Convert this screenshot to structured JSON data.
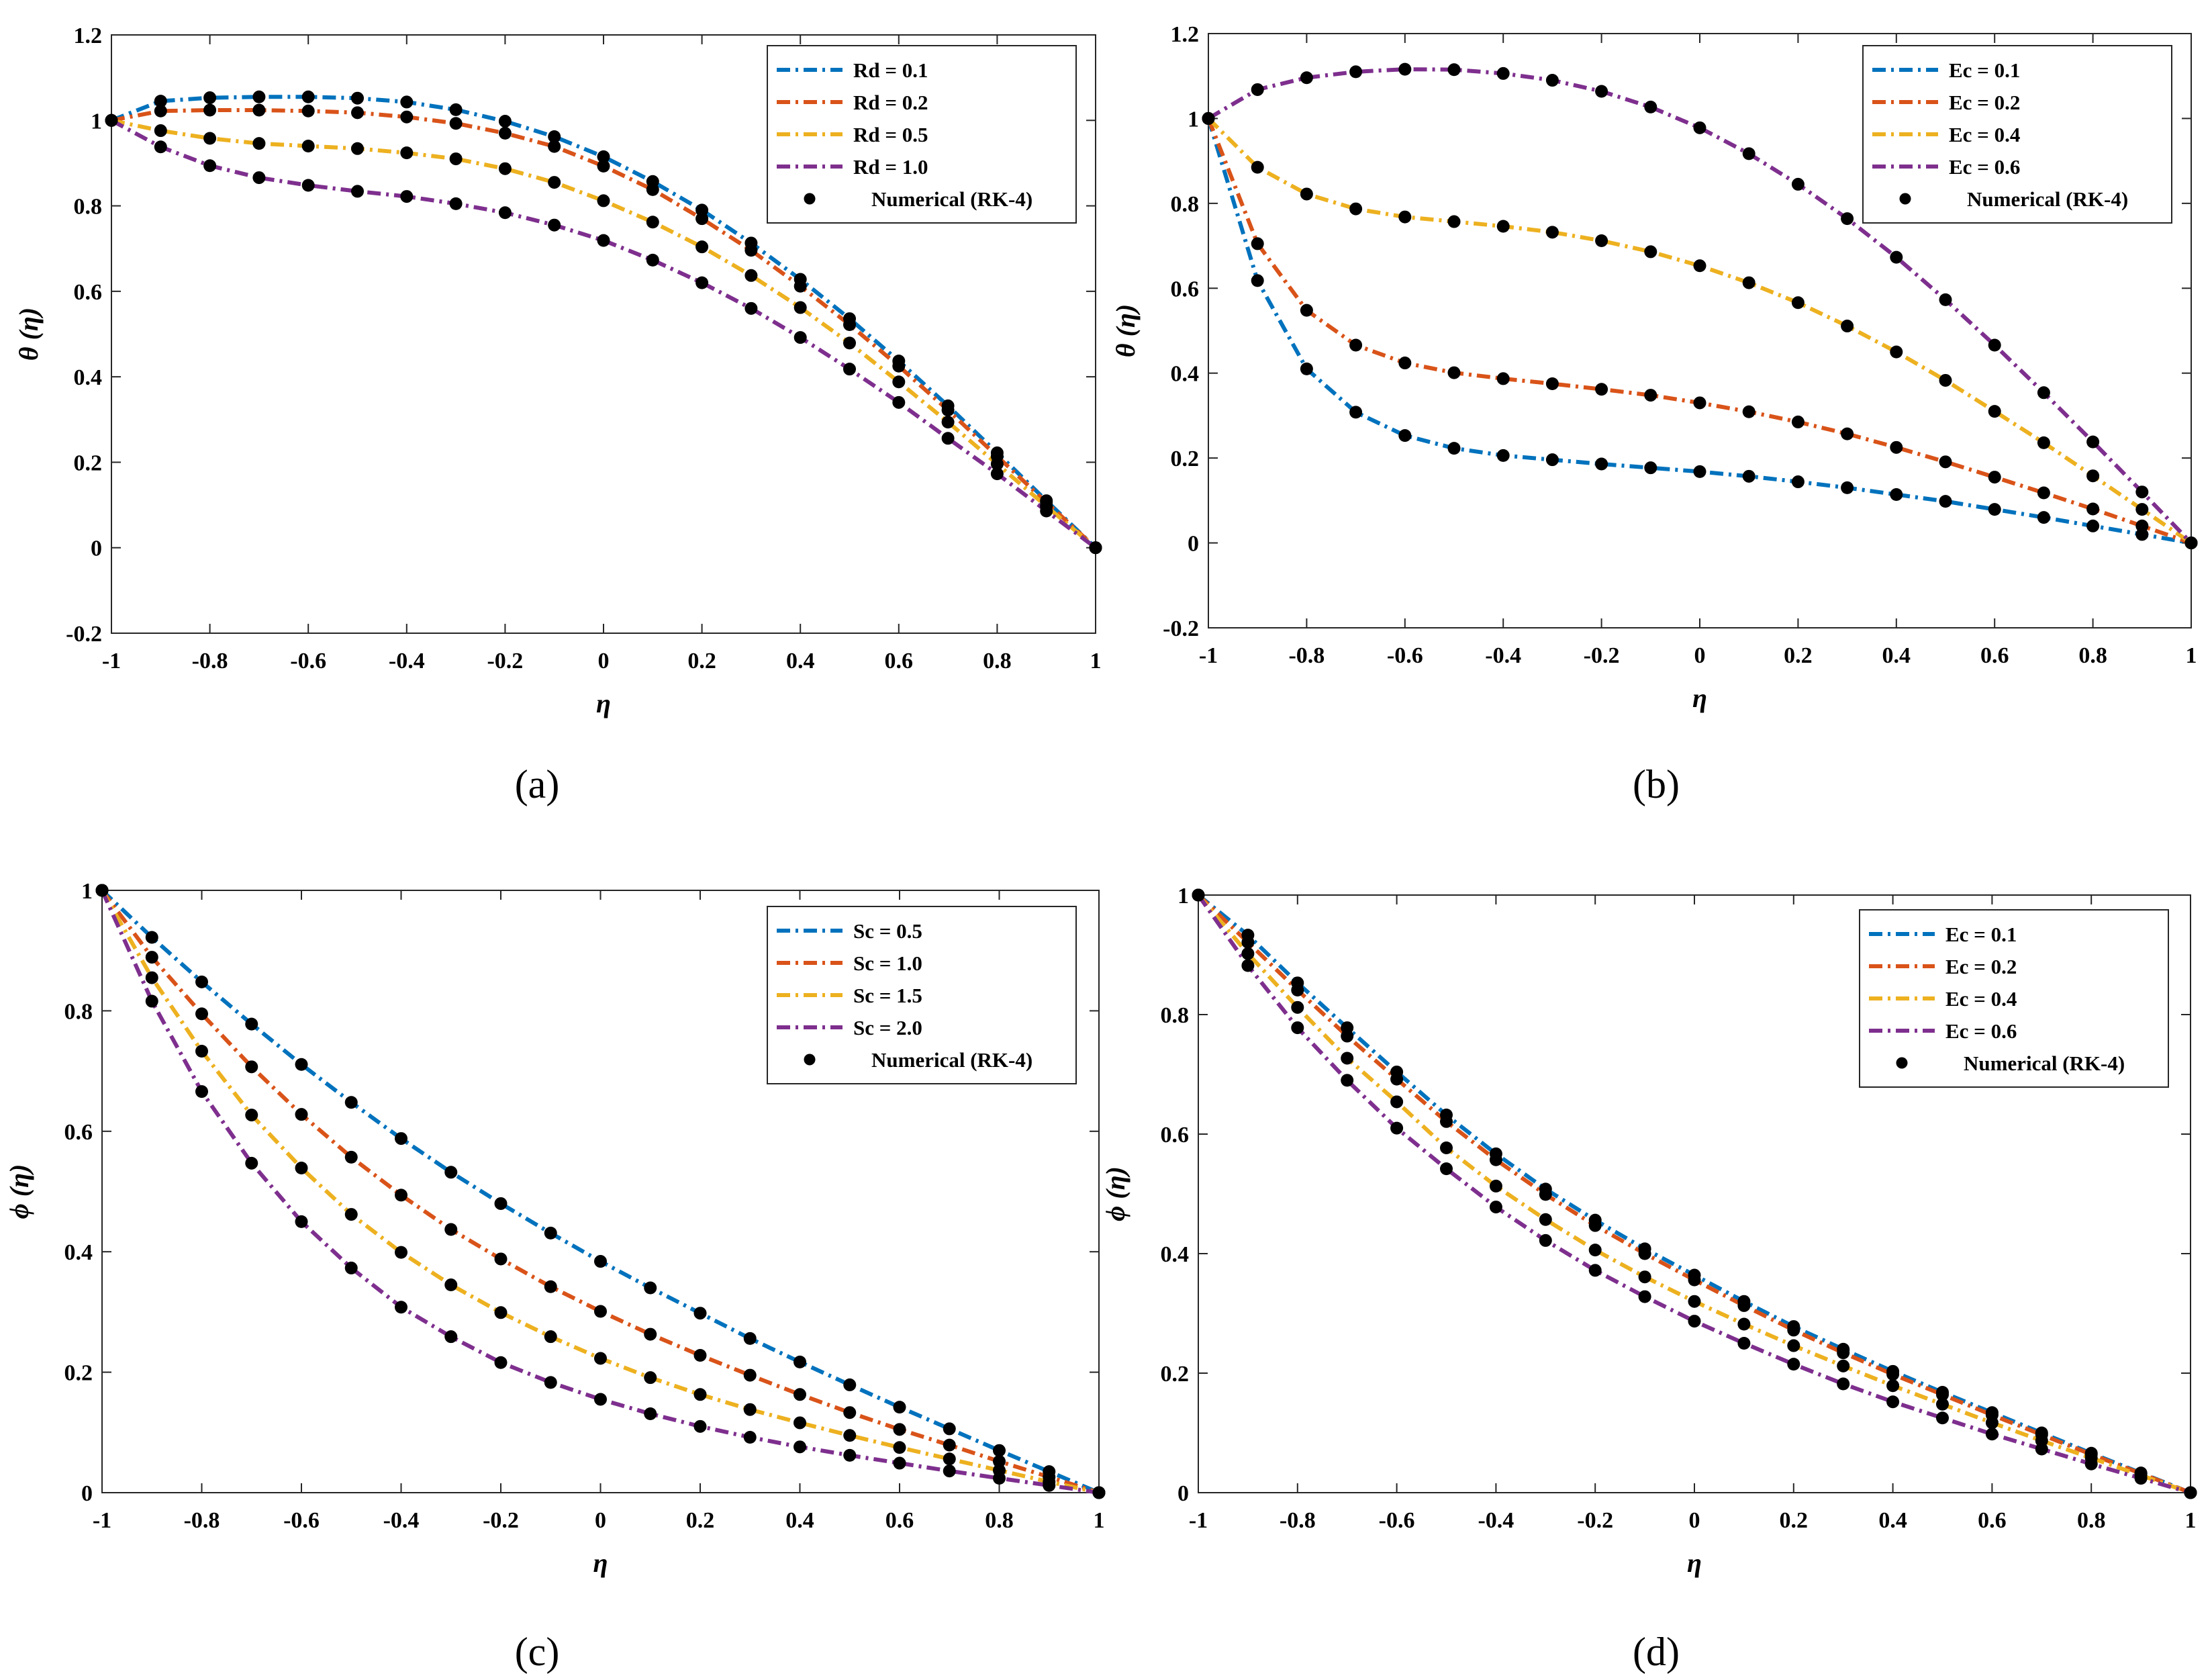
{
  "chart_data": [
    {
      "type": "line",
      "panel_caption": "(a)",
      "xlabel": "η",
      "ylabel": "θ (η)",
      "xlim": [
        -1,
        1
      ],
      "ylim": [
        -0.2,
        1.2
      ],
      "xticks": [
        -1,
        -0.8,
        -0.6,
        -0.4,
        -0.2,
        0,
        0.2,
        0.4,
        0.6,
        0.8,
        1
      ],
      "yticks": [
        -0.2,
        0,
        0.2,
        0.4,
        0.6,
        0.8,
        1,
        1.2
      ],
      "x": [
        -1,
        -0.9,
        -0.8,
        -0.7,
        -0.6,
        -0.5,
        -0.4,
        -0.3,
        -0.2,
        -0.1,
        0,
        0.1,
        0.2,
        0.3,
        0.4,
        0.5,
        0.6,
        0.7,
        0.8,
        0.9,
        1
      ],
      "legend_position": "top-right",
      "markers_label": "Numerical (RK-4)",
      "series": [
        {
          "name": "Rd = 0.1",
          "color": "#0072BD",
          "values": [
            1,
            1.045,
            1.053,
            1.055,
            1.055,
            1.052,
            1.043,
            1.025,
            0.998,
            0.962,
            0.915,
            0.857,
            0.79,
            0.713,
            0.628,
            0.536,
            0.437,
            0.332,
            0.222,
            0.11,
            0
          ]
        },
        {
          "name": "Rd = 0.2",
          "color": "#D95319",
          "values": [
            1,
            1.022,
            1.024,
            1.024,
            1.022,
            1.018,
            1.008,
            0.993,
            0.97,
            0.939,
            0.893,
            0.838,
            0.77,
            0.696,
            0.612,
            0.522,
            0.425,
            0.322,
            0.214,
            0.106,
            0
          ]
        },
        {
          "name": "Rd = 0.5",
          "color": "#EDB120",
          "values": [
            1,
            0.976,
            0.958,
            0.946,
            0.94,
            0.934,
            0.924,
            0.91,
            0.887,
            0.855,
            0.812,
            0.762,
            0.704,
            0.637,
            0.562,
            0.479,
            0.388,
            0.294,
            0.196,
            0.097,
            0
          ]
        },
        {
          "name": "Rd = 1.0",
          "color": "#7E2F8E",
          "values": [
            1,
            0.938,
            0.894,
            0.866,
            0.848,
            0.834,
            0.822,
            0.805,
            0.784,
            0.755,
            0.719,
            0.673,
            0.62,
            0.56,
            0.492,
            0.418,
            0.34,
            0.256,
            0.173,
            0.086,
            0
          ]
        }
      ]
    },
    {
      "type": "line",
      "panel_caption": "(b)",
      "xlabel": "η",
      "ylabel": "θ (η)",
      "xlim": [
        -1,
        1
      ],
      "ylim": [
        -0.2,
        1.2
      ],
      "xticks": [
        -1,
        -0.8,
        -0.6,
        -0.4,
        -0.2,
        0,
        0.2,
        0.4,
        0.6,
        0.8,
        1
      ],
      "yticks": [
        -0.2,
        0,
        0.2,
        0.4,
        0.6,
        0.8,
        1,
        1.2
      ],
      "x": [
        -1,
        -0.9,
        -0.8,
        -0.7,
        -0.6,
        -0.5,
        -0.4,
        -0.3,
        -0.2,
        -0.1,
        0,
        0.1,
        0.2,
        0.3,
        0.4,
        0.5,
        0.6,
        0.7,
        0.8,
        0.9,
        1
      ],
      "legend_position": "top-right",
      "markers_label": "Numerical (RK-4)",
      "series": [
        {
          "name": "Ec = 0.1",
          "color": "#0072BD",
          "values": [
            1,
            0.618,
            0.41,
            0.308,
            0.253,
            0.223,
            0.206,
            0.196,
            0.186,
            0.177,
            0.168,
            0.157,
            0.144,
            0.13,
            0.114,
            0.098,
            0.079,
            0.06,
            0.04,
            0.02,
            0
          ]
        },
        {
          "name": "Ec = 0.2",
          "color": "#D95319",
          "values": [
            1,
            0.705,
            0.548,
            0.466,
            0.424,
            0.401,
            0.387,
            0.375,
            0.362,
            0.348,
            0.33,
            0.309,
            0.285,
            0.257,
            0.225,
            0.191,
            0.155,
            0.118,
            0.08,
            0.04,
            0
          ]
        },
        {
          "name": "Ec = 0.4",
          "color": "#EDB120",
          "values": [
            1,
            0.885,
            0.822,
            0.787,
            0.768,
            0.757,
            0.746,
            0.732,
            0.712,
            0.686,
            0.653,
            0.613,
            0.566,
            0.511,
            0.45,
            0.383,
            0.31,
            0.236,
            0.158,
            0.079,
            0
          ]
        },
        {
          "name": "Ec = 0.6",
          "color": "#7E2F8E",
          "values": [
            1,
            1.068,
            1.096,
            1.11,
            1.116,
            1.115,
            1.106,
            1.09,
            1.064,
            1.027,
            0.978,
            0.917,
            0.845,
            0.764,
            0.673,
            0.573,
            0.466,
            0.354,
            0.238,
            0.12,
            0
          ]
        }
      ]
    },
    {
      "type": "line",
      "panel_caption": "(c)",
      "xlabel": "η",
      "ylabel": "ϕ (η)",
      "xlim": [
        -1,
        1
      ],
      "ylim": [
        0,
        1
      ],
      "xticks": [
        -1,
        -0.8,
        -0.6,
        -0.4,
        -0.2,
        0,
        0.2,
        0.4,
        0.6,
        0.8,
        1
      ],
      "yticks": [
        0,
        0.2,
        0.4,
        0.6,
        0.8,
        1
      ],
      "x": [
        -1,
        -0.9,
        -0.8,
        -0.7,
        -0.6,
        -0.5,
        -0.4,
        -0.3,
        -0.2,
        -0.1,
        0,
        0.1,
        0.2,
        0.3,
        0.4,
        0.5,
        0.6,
        0.7,
        0.8,
        0.9,
        1
      ],
      "legend_position": "top-right",
      "markers_label": "Numerical (RK-4)",
      "series": [
        {
          "name": "Sc = 0.5",
          "color": "#0072BD",
          "values": [
            1,
            0.922,
            0.848,
            0.778,
            0.711,
            0.648,
            0.588,
            0.532,
            0.48,
            0.431,
            0.384,
            0.34,
            0.298,
            0.256,
            0.217,
            0.179,
            0.142,
            0.106,
            0.07,
            0.035,
            0
          ]
        },
        {
          "name": "Sc = 1.0",
          "color": "#D95319",
          "values": [
            1,
            0.889,
            0.795,
            0.707,
            0.628,
            0.557,
            0.494,
            0.437,
            0.388,
            0.342,
            0.301,
            0.263,
            0.228,
            0.195,
            0.163,
            0.133,
            0.105,
            0.079,
            0.052,
            0.026,
            0
          ]
        },
        {
          "name": "Sc = 1.5",
          "color": "#EDB120",
          "values": [
            1,
            0.855,
            0.733,
            0.627,
            0.539,
            0.462,
            0.399,
            0.345,
            0.299,
            0.259,
            0.223,
            0.191,
            0.163,
            0.138,
            0.116,
            0.095,
            0.075,
            0.056,
            0.037,
            0.018,
            0
          ]
        },
        {
          "name": "Sc = 2.0",
          "color": "#7E2F8E",
          "values": [
            1,
            0.816,
            0.666,
            0.547,
            0.45,
            0.373,
            0.308,
            0.259,
            0.216,
            0.183,
            0.155,
            0.131,
            0.11,
            0.092,
            0.076,
            0.062,
            0.049,
            0.036,
            0.024,
            0.012,
            0
          ]
        }
      ]
    },
    {
      "type": "line",
      "panel_caption": "(d)",
      "xlabel": "η",
      "ylabel": "ϕ (η)",
      "xlim": [
        -1,
        1
      ],
      "ylim": [
        0,
        1
      ],
      "xticks": [
        -1,
        -0.8,
        -0.6,
        -0.4,
        -0.2,
        0,
        0.2,
        0.4,
        0.6,
        0.8,
        1
      ],
      "yticks": [
        0,
        0.2,
        0.4,
        0.6,
        0.8,
        1
      ],
      "x": [
        -1,
        -0.9,
        -0.8,
        -0.7,
        -0.6,
        -0.5,
        -0.4,
        -0.3,
        -0.2,
        -0.1,
        0,
        0.1,
        0.2,
        0.3,
        0.4,
        0.5,
        0.6,
        0.7,
        0.8,
        0.9,
        1
      ],
      "legend_position": "top-right",
      "markers_label": "Numerical (RK-4)",
      "series": [
        {
          "name": "Ec = 0.1",
          "color": "#0072BD",
          "values": [
            1,
            0.933,
            0.853,
            0.778,
            0.704,
            0.632,
            0.567,
            0.508,
            0.456,
            0.408,
            0.364,
            0.32,
            0.278,
            0.24,
            0.203,
            0.168,
            0.134,
            0.1,
            0.066,
            0.033,
            0
          ]
        },
        {
          "name": "Ec = 0.2",
          "color": "#D95319",
          "values": [
            1,
            0.921,
            0.841,
            0.764,
            0.692,
            0.621,
            0.557,
            0.499,
            0.447,
            0.4,
            0.356,
            0.313,
            0.272,
            0.234,
            0.198,
            0.164,
            0.13,
            0.097,
            0.064,
            0.032,
            0
          ]
        },
        {
          "name": "Ec = 0.4",
          "color": "#EDB120",
          "values": [
            1,
            0.902,
            0.812,
            0.727,
            0.654,
            0.577,
            0.513,
            0.457,
            0.406,
            0.361,
            0.32,
            0.282,
            0.246,
            0.212,
            0.179,
            0.148,
            0.117,
            0.087,
            0.058,
            0.029,
            0
          ]
        },
        {
          "name": "Ec = 0.6",
          "color": "#7E2F8E",
          "values": [
            1,
            0.882,
            0.778,
            0.69,
            0.61,
            0.542,
            0.478,
            0.422,
            0.372,
            0.328,
            0.287,
            0.25,
            0.215,
            0.182,
            0.152,
            0.125,
            0.098,
            0.073,
            0.048,
            0.024,
            0
          ]
        }
      ]
    }
  ]
}
